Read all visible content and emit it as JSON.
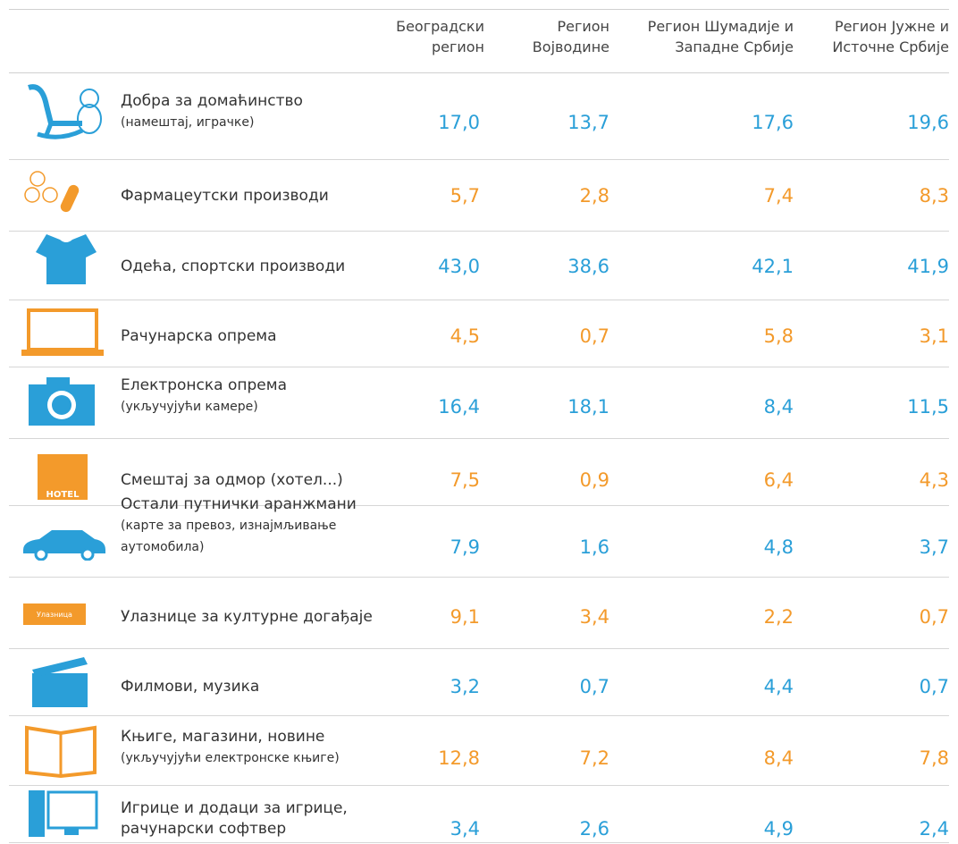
{
  "header": {
    "columns": [
      "Београдски регион",
      "Регион Војводине",
      "Регион Шумадије и Западне Србије",
      "Регион Јужне и Источне Србије"
    ]
  },
  "icons": {
    "ticket": "Улазница",
    "hotel": "HOTEL"
  },
  "rows": [
    {
      "label": "Добра за домаћинство",
      "note": "(намештај, играчке)",
      "values": [
        "17,0",
        "13,7",
        "17,6",
        "19,6"
      ]
    },
    {
      "label": "Фармацеутски производи",
      "values": [
        "5,7",
        "2,8",
        "7,4",
        "8,3"
      ]
    },
    {
      "label": "Одећа, спортски производи",
      "values": [
        "43,0",
        "38,6",
        "42,1",
        "41,9"
      ]
    },
    {
      "label": "Рачунарска опрема",
      "values": [
        "4,5",
        "0,7",
        "5,8",
        "3,1"
      ]
    },
    {
      "label": "Електронска опрема",
      "note": "(укључујући камере)",
      "values": [
        "16,4",
        "18,1",
        "8,4",
        "11,5"
      ]
    },
    {
      "label": "Смештај за одмор (хотел...)",
      "values": [
        "7,5",
        "0,9",
        "6,4",
        "4,3"
      ]
    },
    {
      "label": "Остали путнички аранжмани",
      "note": "(карте за превоз, изнајмљивање аутомобила)",
      "values": [
        "7,9",
        "1,6",
        "4,8",
        "3,7"
      ]
    },
    {
      "label": "Улазнице за културне догађаје",
      "values": [
        "9,1",
        "3,4",
        "2,2",
        "0,7"
      ]
    },
    {
      "label": "Филмови, музика",
      "values": [
        "3,2",
        "0,7",
        "4,4",
        "0,7"
      ]
    },
    {
      "label": "Књиге, магазини, новине",
      "note": "(укључујући електронске књиге)",
      "values": [
        "12,8",
        "7,2",
        "8,4",
        "7,8"
      ]
    },
    {
      "label": "Игрице и додаци за игрице, рачунарски софтвер",
      "values": [
        "3,4",
        "2,6",
        "4,9",
        "2,4"
      ]
    }
  ]
}
